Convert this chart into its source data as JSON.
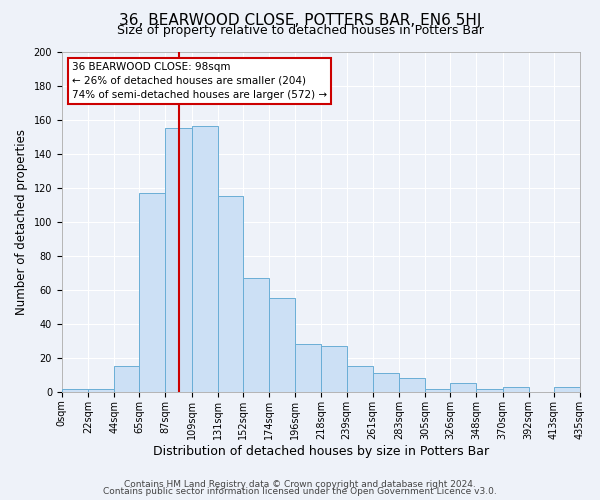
{
  "title": "36, BEARWOOD CLOSE, POTTERS BAR, EN6 5HJ",
  "subtitle": "Size of property relative to detached houses in Potters Bar",
  "xlabel": "Distribution of detached houses by size in Potters Bar",
  "ylabel": "Number of detached properties",
  "bin_edges": [
    0,
    22,
    44,
    65,
    87,
    109,
    131,
    152,
    174,
    196,
    218,
    239,
    261,
    283,
    305,
    326,
    348,
    370,
    392,
    413,
    435
  ],
  "bin_counts": [
    2,
    2,
    15,
    117,
    155,
    156,
    115,
    67,
    55,
    28,
    27,
    15,
    11,
    8,
    2,
    5,
    2,
    3,
    0,
    3
  ],
  "bar_facecolor": "#cce0f5",
  "bar_edgecolor": "#6aaed6",
  "vline_x": 98,
  "vline_color": "#cc0000",
  "ylim": [
    0,
    200
  ],
  "yticks": [
    0,
    20,
    40,
    60,
    80,
    100,
    120,
    140,
    160,
    180,
    200
  ],
  "xtick_labels": [
    "0sqm",
    "22sqm",
    "44sqm",
    "65sqm",
    "87sqm",
    "109sqm",
    "131sqm",
    "152sqm",
    "174sqm",
    "196sqm",
    "218sqm",
    "239sqm",
    "261sqm",
    "283sqm",
    "305sqm",
    "326sqm",
    "348sqm",
    "370sqm",
    "392sqm",
    "413sqm",
    "435sqm"
  ],
  "annotation_title": "36 BEARWOOD CLOSE: 98sqm",
  "annotation_line1": "← 26% of detached houses are smaller (204)",
  "annotation_line2": "74% of semi-detached houses are larger (572) →",
  "footer1": "Contains HM Land Registry data © Crown copyright and database right 2024.",
  "footer2": "Contains public sector information licensed under the Open Government Licence v3.0.",
  "bg_color": "#eef2f9",
  "plot_bg_color": "#eef2f9",
  "grid_color": "#ffffff",
  "title_fontsize": 11,
  "subtitle_fontsize": 9,
  "tick_fontsize": 7,
  "ylabel_fontsize": 8.5,
  "xlabel_fontsize": 9,
  "annotation_fontsize": 7.5,
  "footer_fontsize": 6.5
}
